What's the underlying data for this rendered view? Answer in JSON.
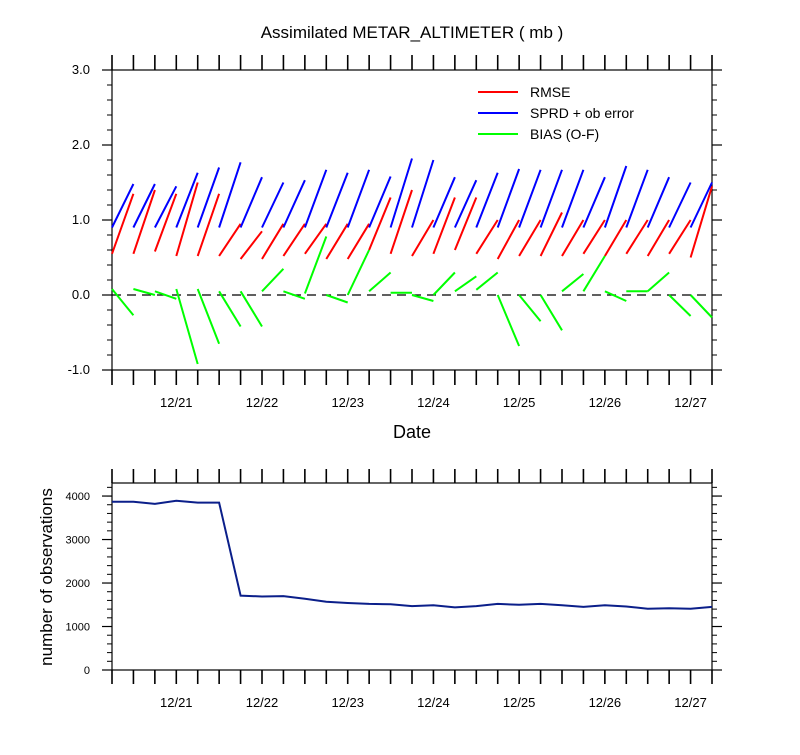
{
  "chart_data": [
    {
      "type": "line",
      "title": "Assimilated METAR_ALTIMETER ( mb )",
      "xlabel": "Date",
      "ylabel": "",
      "ylim": [
        -1.0,
        3.0
      ],
      "xlim": [
        0,
        28
      ],
      "yticks": [
        "3.0",
        "2.0",
        "1.0",
        "0.0",
        "-1.0"
      ],
      "ytick_values": [
        3.0,
        2.0,
        1.0,
        0.0,
        -1.0
      ],
      "xticks": [
        "12/21",
        "12/22",
        "12/23",
        "12/24",
        "12/25",
        "12/26",
        "12/27"
      ],
      "xtick_values": [
        3,
        7,
        11,
        15,
        19,
        23,
        27
      ],
      "legend_position": "top-right",
      "series": [
        {
          "name": "RMSE",
          "color": "#ff0000",
          "segments": [
            [
              [
                0,
                0.55
              ],
              [
                1,
                1.35
              ]
            ],
            [
              [
                1,
                0.55
              ],
              [
                2,
                1.4
              ]
            ],
            [
              [
                2,
                0.58
              ],
              [
                3,
                1.35
              ]
            ],
            [
              [
                3,
                0.52
              ],
              [
                4,
                1.5
              ]
            ],
            [
              [
                4,
                0.52
              ],
              [
                5,
                1.35
              ]
            ],
            [
              [
                5,
                0.52
              ],
              [
                6,
                0.95
              ]
            ],
            [
              [
                6,
                0.48
              ],
              [
                7,
                0.85
              ]
            ],
            [
              [
                7,
                0.48
              ],
              [
                8,
                0.95
              ]
            ],
            [
              [
                8,
                0.52
              ],
              [
                9,
                0.95
              ]
            ],
            [
              [
                9,
                0.55
              ],
              [
                10,
                0.95
              ]
            ],
            [
              [
                10,
                0.48
              ],
              [
                11,
                0.95
              ]
            ],
            [
              [
                11,
                0.48
              ],
              [
                12,
                0.95
              ]
            ],
            [
              [
                12,
                0.6
              ],
              [
                13,
                1.3
              ]
            ],
            [
              [
                13,
                0.55
              ],
              [
                14,
                1.4
              ]
            ],
            [
              [
                14,
                0.52
              ],
              [
                15,
                1.0
              ]
            ],
            [
              [
                15,
                0.55
              ],
              [
                16,
                1.3
              ]
            ],
            [
              [
                16,
                0.6
              ],
              [
                17,
                1.3
              ]
            ],
            [
              [
                17,
                0.55
              ],
              [
                18,
                1.0
              ]
            ],
            [
              [
                18,
                0.48
              ],
              [
                19,
                1.0
              ]
            ],
            [
              [
                19,
                0.52
              ],
              [
                20,
                1.0
              ]
            ],
            [
              [
                20,
                0.52
              ],
              [
                21,
                1.1
              ]
            ],
            [
              [
                21,
                0.52
              ],
              [
                22,
                1.0
              ]
            ],
            [
              [
                22,
                0.55
              ],
              [
                23,
                1.0
              ]
            ],
            [
              [
                23,
                0.52
              ],
              [
                24,
                1.0
              ]
            ],
            [
              [
                24,
                0.55
              ],
              [
                25,
                1.0
              ]
            ],
            [
              [
                25,
                0.52
              ],
              [
                26,
                1.0
              ]
            ],
            [
              [
                26,
                0.55
              ],
              [
                27,
                1.0
              ]
            ],
            [
              [
                27,
                0.5
              ],
              [
                28,
                1.45
              ]
            ]
          ]
        },
        {
          "name": "SPRD + ob error",
          "color": "#0000ff",
          "segments": [
            [
              [
                0,
                0.9
              ],
              [
                1,
                1.48
              ]
            ],
            [
              [
                1,
                0.9
              ],
              [
                2,
                1.48
              ]
            ],
            [
              [
                2,
                0.9
              ],
              [
                3,
                1.45
              ]
            ],
            [
              [
                3,
                0.9
              ],
              [
                4,
                1.63
              ]
            ],
            [
              [
                4,
                0.9
              ],
              [
                5,
                1.7
              ]
            ],
            [
              [
                5,
                0.9
              ],
              [
                6,
                1.77
              ]
            ],
            [
              [
                6,
                0.9
              ],
              [
                7,
                1.57
              ]
            ],
            [
              [
                7,
                0.9
              ],
              [
                8,
                1.5
              ]
            ],
            [
              [
                8,
                0.9
              ],
              [
                9,
                1.53
              ]
            ],
            [
              [
                9,
                0.9
              ],
              [
                10,
                1.67
              ]
            ],
            [
              [
                10,
                0.9
              ],
              [
                11,
                1.63
              ]
            ],
            [
              [
                11,
                0.9
              ],
              [
                12,
                1.67
              ]
            ],
            [
              [
                12,
                0.9
              ],
              [
                13,
                1.58
              ]
            ],
            [
              [
                13,
                0.9
              ],
              [
                14,
                1.82
              ]
            ],
            [
              [
                14,
                0.9
              ],
              [
                15,
                1.8
              ]
            ],
            [
              [
                15,
                0.9
              ],
              [
                16,
                1.57
              ]
            ],
            [
              [
                16,
                0.9
              ],
              [
                17,
                1.53
              ]
            ],
            [
              [
                17,
                0.9
              ],
              [
                18,
                1.63
              ]
            ],
            [
              [
                18,
                0.9
              ],
              [
                19,
                1.68
              ]
            ],
            [
              [
                19,
                0.9
              ],
              [
                20,
                1.67
              ]
            ],
            [
              [
                20,
                0.9
              ],
              [
                21,
                1.67
              ]
            ],
            [
              [
                21,
                0.9
              ],
              [
                22,
                1.67
              ]
            ],
            [
              [
                22,
                0.9
              ],
              [
                23,
                1.57
              ]
            ],
            [
              [
                23,
                0.9
              ],
              [
                24,
                1.72
              ]
            ],
            [
              [
                24,
                0.9
              ],
              [
                25,
                1.67
              ]
            ],
            [
              [
                25,
                0.9
              ],
              [
                26,
                1.57
              ]
            ],
            [
              [
                26,
                0.9
              ],
              [
                27,
                1.5
              ]
            ],
            [
              [
                27,
                0.9
              ],
              [
                28,
                1.5
              ]
            ]
          ]
        },
        {
          "name": "BIAS (O-F)",
          "color": "#00ff00",
          "segments": [
            [
              [
                0,
                0.08
              ],
              [
                1,
                -0.27
              ]
            ],
            [
              [
                1,
                0.08
              ],
              [
                2,
                0.0
              ]
            ],
            [
              [
                2,
                0.05
              ],
              [
                3,
                -0.05
              ]
            ],
            [
              [
                3,
                0.08
              ],
              [
                4,
                -0.92
              ]
            ],
            [
              [
                4,
                0.08
              ],
              [
                5,
                -0.65
              ]
            ],
            [
              [
                5,
                0.05
              ],
              [
                6,
                -0.42
              ]
            ],
            [
              [
                6,
                0.05
              ],
              [
                7,
                -0.42
              ]
            ],
            [
              [
                7,
                0.05
              ],
              [
                8,
                0.35
              ]
            ],
            [
              [
                8,
                0.05
              ],
              [
                9,
                -0.05
              ]
            ],
            [
              [
                9,
                0.02
              ],
              [
                10,
                0.78
              ]
            ],
            [
              [
                10,
                0.0
              ],
              [
                11,
                -0.1
              ]
            ],
            [
              [
                11,
                0.0
              ],
              [
                12,
                0.6
              ]
            ],
            [
              [
                12,
                0.05
              ],
              [
                13,
                0.3
              ]
            ],
            [
              [
                13,
                0.03
              ],
              [
                14,
                0.03
              ]
            ],
            [
              [
                14,
                0.0
              ],
              [
                15,
                -0.08
              ]
            ],
            [
              [
                15,
                0.0
              ],
              [
                16,
                0.3
              ]
            ],
            [
              [
                16,
                0.05
              ],
              [
                17,
                0.25
              ]
            ],
            [
              [
                17,
                0.07
              ],
              [
                18,
                0.3
              ]
            ],
            [
              [
                18,
                0.0
              ],
              [
                19,
                -0.68
              ]
            ],
            [
              [
                19,
                0.0
              ],
              [
                20,
                -0.35
              ]
            ],
            [
              [
                20,
                0.0
              ],
              [
                21,
                -0.47
              ]
            ],
            [
              [
                21,
                0.05
              ],
              [
                22,
                0.28
              ]
            ],
            [
              [
                22,
                0.05
              ],
              [
                23,
                0.52
              ]
            ],
            [
              [
                23,
                0.05
              ],
              [
                24,
                -0.08
              ]
            ],
            [
              [
                24,
                0.05
              ],
              [
                25,
                0.05
              ]
            ],
            [
              [
                25,
                0.05
              ],
              [
                26,
                0.3
              ]
            ],
            [
              [
                26,
                0.0
              ],
              [
                27,
                -0.28
              ]
            ],
            [
              [
                27,
                0.0
              ],
              [
                28,
                -0.3
              ]
            ]
          ]
        }
      ]
    },
    {
      "type": "line",
      "title": "",
      "xlabel": "",
      "ylabel": "number of observations",
      "ylim": [
        0,
        4300
      ],
      "xlim": [
        0,
        28
      ],
      "yticks": [
        "4000",
        "3000",
        "2000",
        "1000",
        "0"
      ],
      "ytick_values": [
        4000,
        3000,
        2000,
        1000,
        0
      ],
      "xticks": [
        "12/21",
        "12/22",
        "12/23",
        "12/24",
        "12/25",
        "12/26",
        "12/27"
      ],
      "xtick_values": [
        3,
        7,
        11,
        15,
        19,
        23,
        27
      ],
      "series": [
        {
          "name": "observations",
          "color": "#0b1f8a",
          "x": [
            0,
            1,
            2,
            3,
            4,
            5,
            6,
            7,
            8,
            9,
            10,
            11,
            12,
            13,
            14,
            15,
            16,
            17,
            18,
            19,
            20,
            21,
            22,
            23,
            24,
            25,
            26,
            27,
            28
          ],
          "values": [
            3870,
            3870,
            3820,
            3890,
            3850,
            3850,
            1710,
            1690,
            1700,
            1640,
            1570,
            1540,
            1520,
            1510,
            1470,
            1490,
            1440,
            1470,
            1520,
            1500,
            1520,
            1490,
            1450,
            1490,
            1460,
            1410,
            1420,
            1410,
            1450
          ]
        }
      ]
    }
  ]
}
